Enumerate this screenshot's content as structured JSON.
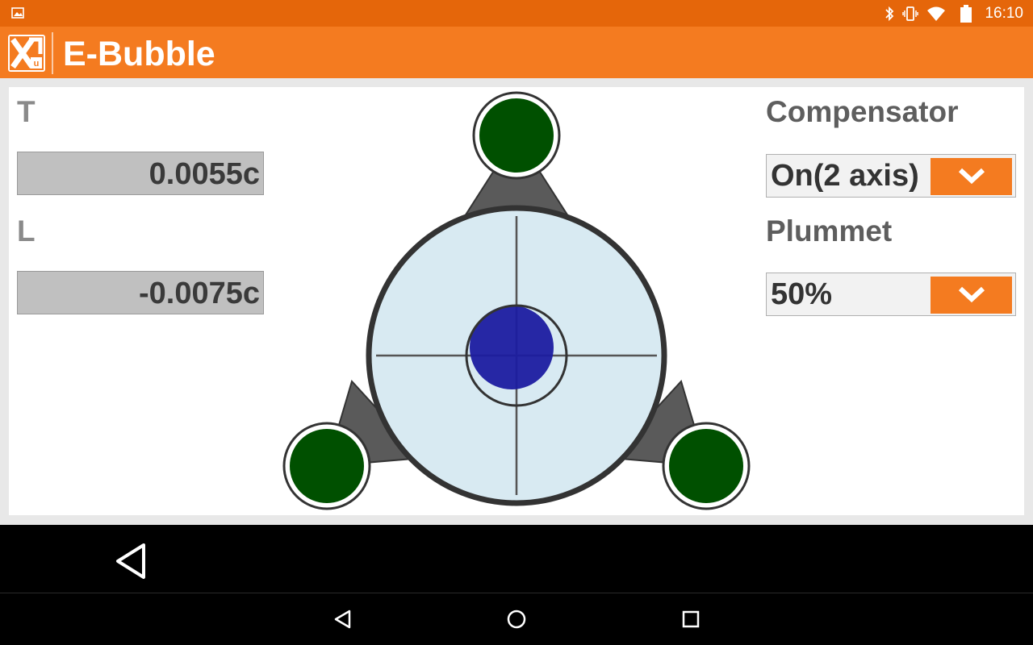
{
  "status_bar": {
    "time": "16:10",
    "icons": [
      "image-icon",
      "bluetooth-icon",
      "vibrate-icon",
      "wifi-icon",
      "battery-icon"
    ]
  },
  "app_bar": {
    "title": "E-Bubble",
    "logo_icon": "app-logo-icon"
  },
  "tilt": {
    "t_label": "T",
    "t_value": "0.0055c",
    "l_label": "L",
    "l_value": "-0.0075c"
  },
  "compensator": {
    "label": "Compensator",
    "selected": "On(2 axis)"
  },
  "plummet": {
    "label": "Plummet",
    "selected": "50%"
  },
  "colors": {
    "status_bar": "#e5660a",
    "app_bar": "#f47b20",
    "accent": "#f47b20",
    "foot_screw": "#005000",
    "bubble": "#1c1ca0",
    "vial": "#d8eaf2"
  },
  "nav": {
    "app_back_icon": "back-triangle-icon",
    "system_icons": [
      "back-icon",
      "home-icon",
      "recents-icon"
    ]
  }
}
